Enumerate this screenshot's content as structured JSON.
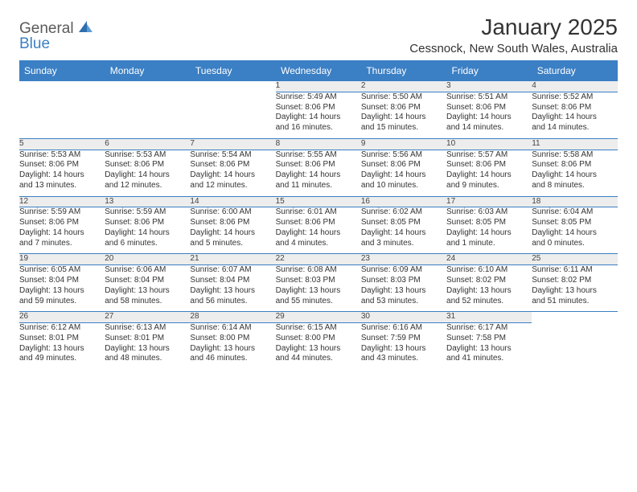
{
  "logo": {
    "part1": "General",
    "part2": "Blue"
  },
  "title": "January 2025",
  "location": "Cessnock, New South Wales, Australia",
  "colors": {
    "header_bg": "#3b7fc4",
    "header_text": "#ffffff",
    "daynum_bg": "#ededed",
    "cell_bg": "#ffffff",
    "border": "#3b7fc4",
    "body_text": "#333333"
  },
  "weekdays": [
    "Sunday",
    "Monday",
    "Tuesday",
    "Wednesday",
    "Thursday",
    "Friday",
    "Saturday"
  ],
  "weeks": [
    [
      null,
      null,
      null,
      {
        "n": "1",
        "sr": "Sunrise: 5:49 AM",
        "ss": "Sunset: 8:06 PM",
        "d1": "Daylight: 14 hours",
        "d2": "and 16 minutes."
      },
      {
        "n": "2",
        "sr": "Sunrise: 5:50 AM",
        "ss": "Sunset: 8:06 PM",
        "d1": "Daylight: 14 hours",
        "d2": "and 15 minutes."
      },
      {
        "n": "3",
        "sr": "Sunrise: 5:51 AM",
        "ss": "Sunset: 8:06 PM",
        "d1": "Daylight: 14 hours",
        "d2": "and 14 minutes."
      },
      {
        "n": "4",
        "sr": "Sunrise: 5:52 AM",
        "ss": "Sunset: 8:06 PM",
        "d1": "Daylight: 14 hours",
        "d2": "and 14 minutes."
      }
    ],
    [
      {
        "n": "5",
        "sr": "Sunrise: 5:53 AM",
        "ss": "Sunset: 8:06 PM",
        "d1": "Daylight: 14 hours",
        "d2": "and 13 minutes."
      },
      {
        "n": "6",
        "sr": "Sunrise: 5:53 AM",
        "ss": "Sunset: 8:06 PM",
        "d1": "Daylight: 14 hours",
        "d2": "and 12 minutes."
      },
      {
        "n": "7",
        "sr": "Sunrise: 5:54 AM",
        "ss": "Sunset: 8:06 PM",
        "d1": "Daylight: 14 hours",
        "d2": "and 12 minutes."
      },
      {
        "n": "8",
        "sr": "Sunrise: 5:55 AM",
        "ss": "Sunset: 8:06 PM",
        "d1": "Daylight: 14 hours",
        "d2": "and 11 minutes."
      },
      {
        "n": "9",
        "sr": "Sunrise: 5:56 AM",
        "ss": "Sunset: 8:06 PM",
        "d1": "Daylight: 14 hours",
        "d2": "and 10 minutes."
      },
      {
        "n": "10",
        "sr": "Sunrise: 5:57 AM",
        "ss": "Sunset: 8:06 PM",
        "d1": "Daylight: 14 hours",
        "d2": "and 9 minutes."
      },
      {
        "n": "11",
        "sr": "Sunrise: 5:58 AM",
        "ss": "Sunset: 8:06 PM",
        "d1": "Daylight: 14 hours",
        "d2": "and 8 minutes."
      }
    ],
    [
      {
        "n": "12",
        "sr": "Sunrise: 5:59 AM",
        "ss": "Sunset: 8:06 PM",
        "d1": "Daylight: 14 hours",
        "d2": "and 7 minutes."
      },
      {
        "n": "13",
        "sr": "Sunrise: 5:59 AM",
        "ss": "Sunset: 8:06 PM",
        "d1": "Daylight: 14 hours",
        "d2": "and 6 minutes."
      },
      {
        "n": "14",
        "sr": "Sunrise: 6:00 AM",
        "ss": "Sunset: 8:06 PM",
        "d1": "Daylight: 14 hours",
        "d2": "and 5 minutes."
      },
      {
        "n": "15",
        "sr": "Sunrise: 6:01 AM",
        "ss": "Sunset: 8:06 PM",
        "d1": "Daylight: 14 hours",
        "d2": "and 4 minutes."
      },
      {
        "n": "16",
        "sr": "Sunrise: 6:02 AM",
        "ss": "Sunset: 8:05 PM",
        "d1": "Daylight: 14 hours",
        "d2": "and 3 minutes."
      },
      {
        "n": "17",
        "sr": "Sunrise: 6:03 AM",
        "ss": "Sunset: 8:05 PM",
        "d1": "Daylight: 14 hours",
        "d2": "and 1 minute."
      },
      {
        "n": "18",
        "sr": "Sunrise: 6:04 AM",
        "ss": "Sunset: 8:05 PM",
        "d1": "Daylight: 14 hours",
        "d2": "and 0 minutes."
      }
    ],
    [
      {
        "n": "19",
        "sr": "Sunrise: 6:05 AM",
        "ss": "Sunset: 8:04 PM",
        "d1": "Daylight: 13 hours",
        "d2": "and 59 minutes."
      },
      {
        "n": "20",
        "sr": "Sunrise: 6:06 AM",
        "ss": "Sunset: 8:04 PM",
        "d1": "Daylight: 13 hours",
        "d2": "and 58 minutes."
      },
      {
        "n": "21",
        "sr": "Sunrise: 6:07 AM",
        "ss": "Sunset: 8:04 PM",
        "d1": "Daylight: 13 hours",
        "d2": "and 56 minutes."
      },
      {
        "n": "22",
        "sr": "Sunrise: 6:08 AM",
        "ss": "Sunset: 8:03 PM",
        "d1": "Daylight: 13 hours",
        "d2": "and 55 minutes."
      },
      {
        "n": "23",
        "sr": "Sunrise: 6:09 AM",
        "ss": "Sunset: 8:03 PM",
        "d1": "Daylight: 13 hours",
        "d2": "and 53 minutes."
      },
      {
        "n": "24",
        "sr": "Sunrise: 6:10 AM",
        "ss": "Sunset: 8:02 PM",
        "d1": "Daylight: 13 hours",
        "d2": "and 52 minutes."
      },
      {
        "n": "25",
        "sr": "Sunrise: 6:11 AM",
        "ss": "Sunset: 8:02 PM",
        "d1": "Daylight: 13 hours",
        "d2": "and 51 minutes."
      }
    ],
    [
      {
        "n": "26",
        "sr": "Sunrise: 6:12 AM",
        "ss": "Sunset: 8:01 PM",
        "d1": "Daylight: 13 hours",
        "d2": "and 49 minutes."
      },
      {
        "n": "27",
        "sr": "Sunrise: 6:13 AM",
        "ss": "Sunset: 8:01 PM",
        "d1": "Daylight: 13 hours",
        "d2": "and 48 minutes."
      },
      {
        "n": "28",
        "sr": "Sunrise: 6:14 AM",
        "ss": "Sunset: 8:00 PM",
        "d1": "Daylight: 13 hours",
        "d2": "and 46 minutes."
      },
      {
        "n": "29",
        "sr": "Sunrise: 6:15 AM",
        "ss": "Sunset: 8:00 PM",
        "d1": "Daylight: 13 hours",
        "d2": "and 44 minutes."
      },
      {
        "n": "30",
        "sr": "Sunrise: 6:16 AM",
        "ss": "Sunset: 7:59 PM",
        "d1": "Daylight: 13 hours",
        "d2": "and 43 minutes."
      },
      {
        "n": "31",
        "sr": "Sunrise: 6:17 AM",
        "ss": "Sunset: 7:58 PM",
        "d1": "Daylight: 13 hours",
        "d2": "and 41 minutes."
      },
      null
    ]
  ]
}
